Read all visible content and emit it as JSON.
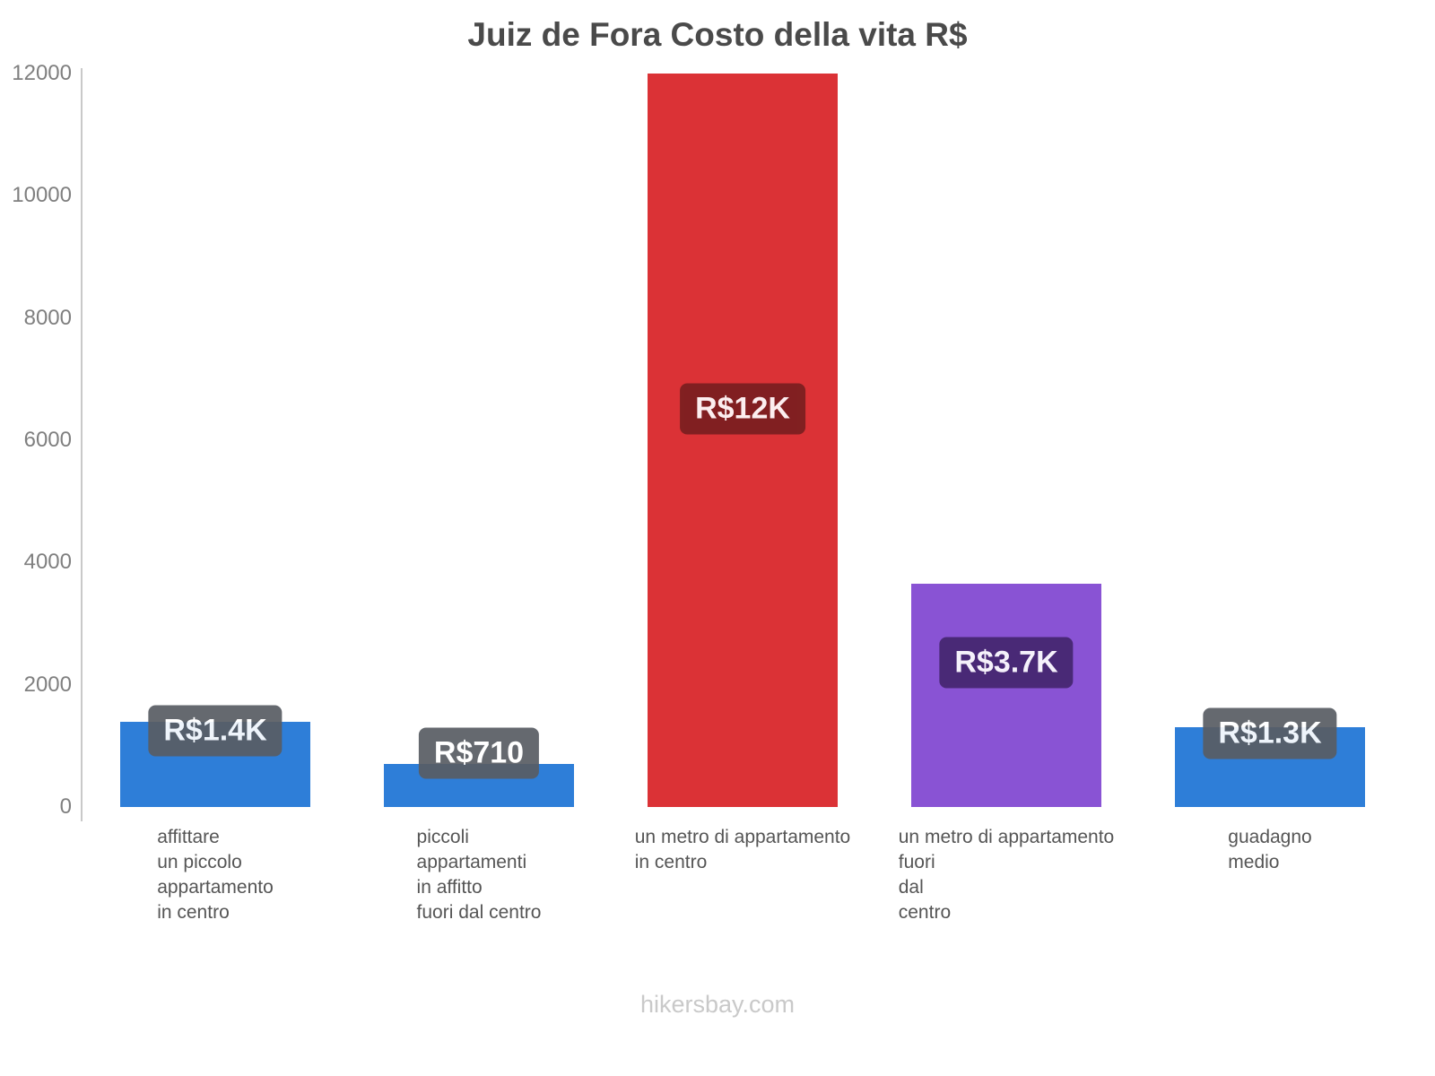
{
  "footer": {
    "text": "hikersbay.com"
  },
  "chart_data": {
    "type": "bar",
    "title": "Juiz de Fora Costo della vita R$",
    "categories": [
      "affittare\nun piccolo\nappartamento\nin centro",
      "piccoli\nappartamenti\nin affitto\nfuori dal centro",
      "un metro di appartamento\nin centro",
      "un metro di appartamento\nfuori\ndal\ncentro",
      "guadagno\nmedio"
    ],
    "values": [
      1400,
      710,
      12000,
      3650,
      1300
    ],
    "value_labels": [
      "R$1.4K",
      "R$710",
      "R$12K",
      "R$3.7K",
      "R$1.3K"
    ],
    "bar_colors": [
      "#2e7ed8",
      "#2e7ed8",
      "#db3236",
      "#8953d4",
      "#2e7ed8"
    ],
    "badge_colors": [
      "#595d63",
      "#595d63",
      "#7a1e20",
      "#44266f",
      "#595d63"
    ],
    "ylim": [
      0,
      12000
    ],
    "yticks": [
      0,
      2000,
      4000,
      6000,
      8000,
      10000,
      12000
    ],
    "xlabel": "",
    "ylabel": "",
    "grid": false,
    "legend": false,
    "currency": "R$"
  }
}
